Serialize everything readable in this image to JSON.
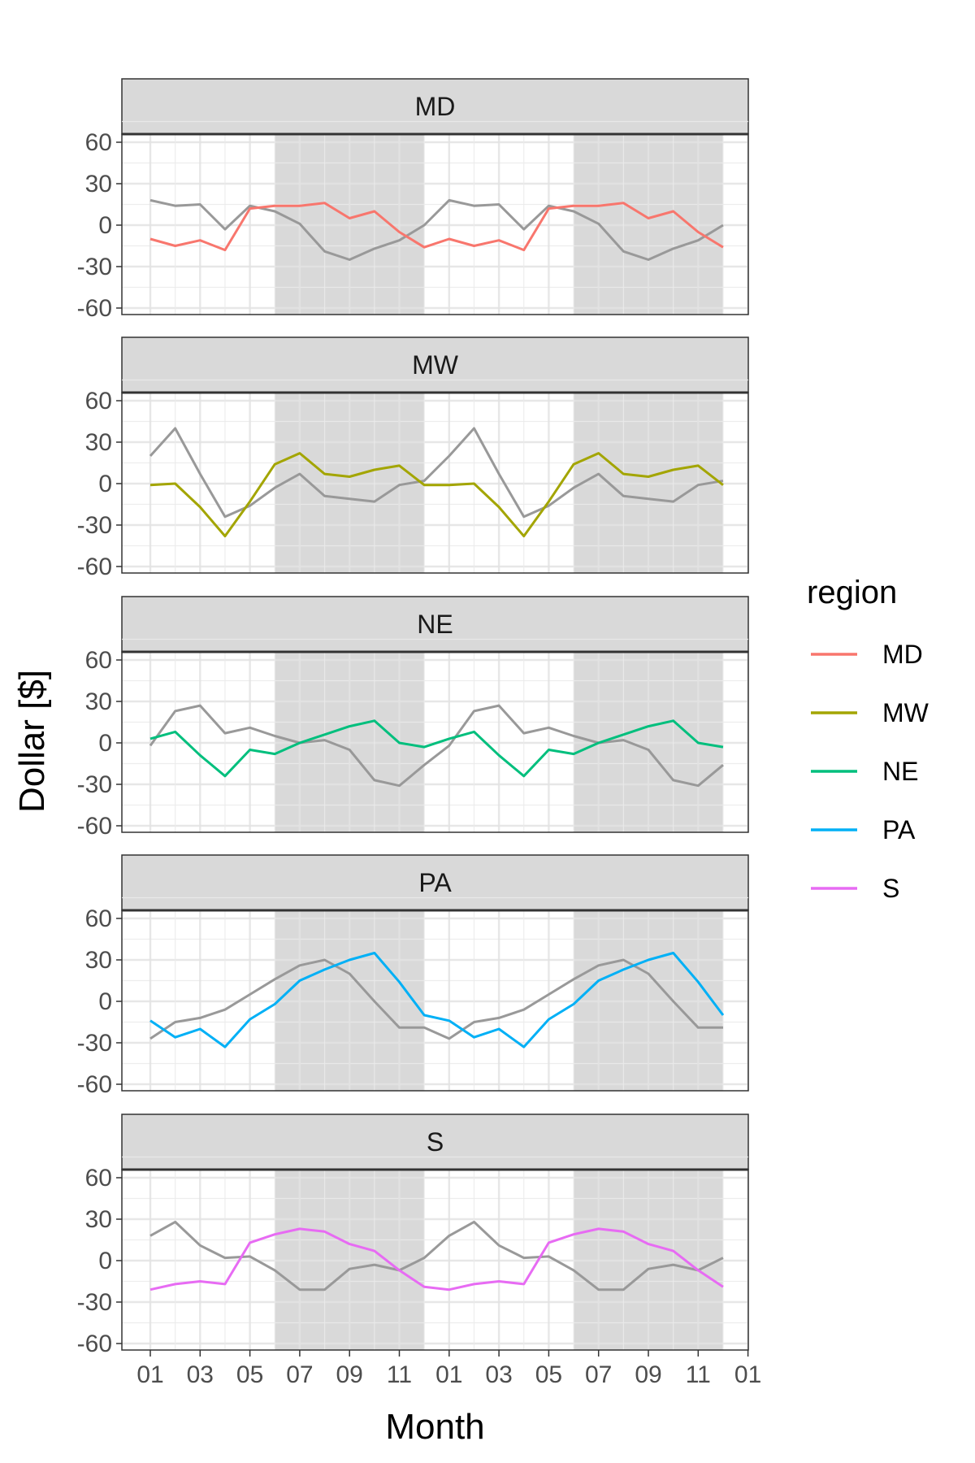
{
  "chart_data": {
    "type": "line",
    "facet_by": "region",
    "xlabel": "Month",
    "ylabel": "Dollar [$]",
    "x_tick_labels": [
      "01",
      "03",
      "05",
      "07",
      "09",
      "11",
      "01",
      "03",
      "05",
      "07",
      "09",
      "11",
      "01"
    ],
    "y_ticks": [
      60,
      30,
      0,
      -30,
      -60
    ],
    "y_tick_labels": [
      "60",
      "30",
      "0",
      "-30",
      "-60"
    ],
    "ylim": [
      -65,
      65
    ],
    "x": [
      1,
      2,
      3,
      4,
      5,
      6,
      7,
      8,
      9,
      10,
      11,
      12,
      13,
      14,
      15,
      16,
      17,
      18,
      19,
      20,
      21,
      22,
      23,
      24
    ],
    "shaded_periods": [
      [
        6,
        12
      ],
      [
        18,
        24
      ]
    ],
    "shade_color": "#d9d9d9",
    "grey_line_color": "#999999",
    "grid": true,
    "legend": {
      "title": "region",
      "position": "right",
      "items": [
        {
          "label": "MD",
          "color": "#F8766D"
        },
        {
          "label": "MW",
          "color": "#A3A500"
        },
        {
          "label": "NE",
          "color": "#00BF7D"
        },
        {
          "label": "PA",
          "color": "#00B0F6"
        },
        {
          "label": "S",
          "color": "#E76BF3"
        }
      ]
    },
    "panels": [
      {
        "region": "MD",
        "color": "#F8766D",
        "values": [
          -10,
          -15,
          -11,
          -18,
          12,
          14,
          14,
          16,
          5,
          10,
          -5,
          -16,
          -10,
          -15,
          -11,
          -18,
          12,
          14,
          14,
          16,
          5,
          10,
          -5,
          -16
        ],
        "grey_values": [
          18,
          14,
          15,
          -3,
          14,
          10,
          1,
          -19,
          -25,
          -17,
          -11,
          0,
          18,
          14,
          15,
          -3,
          14,
          10,
          1,
          -19,
          -25,
          -17,
          -11,
          0
        ]
      },
      {
        "region": "MW",
        "color": "#A3A500",
        "values": [
          -1,
          0,
          -17,
          -38,
          -13,
          14,
          22,
          7,
          5,
          10,
          13,
          -1,
          -1,
          0,
          -17,
          -38,
          -13,
          14,
          22,
          7,
          5,
          10,
          13,
          -1
        ],
        "grey_values": [
          20,
          40,
          7,
          -24,
          -16,
          -3,
          7,
          -9,
          -11,
          -13,
          -1,
          2,
          20,
          40,
          7,
          -24,
          -16,
          -3,
          7,
          -9,
          -11,
          -13,
          -1,
          2
        ]
      },
      {
        "region": "NE",
        "color": "#00BF7D",
        "values": [
          3,
          8,
          -9,
          -24,
          -5,
          -8,
          0,
          6,
          12,
          16,
          0,
          -3,
          3,
          8,
          -9,
          -24,
          -5,
          -8,
          0,
          6,
          12,
          16,
          0,
          -3
        ],
        "grey_values": [
          -2,
          23,
          27,
          7,
          11,
          5,
          0,
          2,
          -5,
          -27,
          -31,
          -16,
          -2,
          23,
          27,
          7,
          11,
          5,
          0,
          2,
          -5,
          -27,
          -31,
          -16
        ]
      },
      {
        "region": "PA",
        "color": "#00B0F6",
        "values": [
          -14,
          -26,
          -20,
          -33,
          -13,
          -2,
          15,
          23,
          30,
          35,
          14,
          -10,
          -14,
          -26,
          -20,
          -33,
          -13,
          -2,
          15,
          23,
          30,
          35,
          14,
          -10
        ],
        "grey_values": [
          -27,
          -15,
          -12,
          -6,
          5,
          16,
          26,
          30,
          20,
          0,
          -19,
          -19,
          -27,
          -15,
          -12,
          -6,
          5,
          16,
          26,
          30,
          20,
          0,
          -19,
          -19
        ]
      },
      {
        "region": "S",
        "color": "#E76BF3",
        "values": [
          -21,
          -17,
          -15,
          -17,
          13,
          19,
          23,
          21,
          12,
          7,
          -7,
          -19,
          -21,
          -17,
          -15,
          -17,
          13,
          19,
          23,
          21,
          12,
          7,
          -7,
          -19
        ],
        "grey_values": [
          18,
          28,
          11,
          2,
          3,
          -7,
          -21,
          -21,
          -6,
          -3,
          -7,
          2,
          18,
          28,
          11,
          2,
          3,
          -7,
          -21,
          -21,
          -6,
          -3,
          -7,
          2
        ]
      }
    ]
  }
}
